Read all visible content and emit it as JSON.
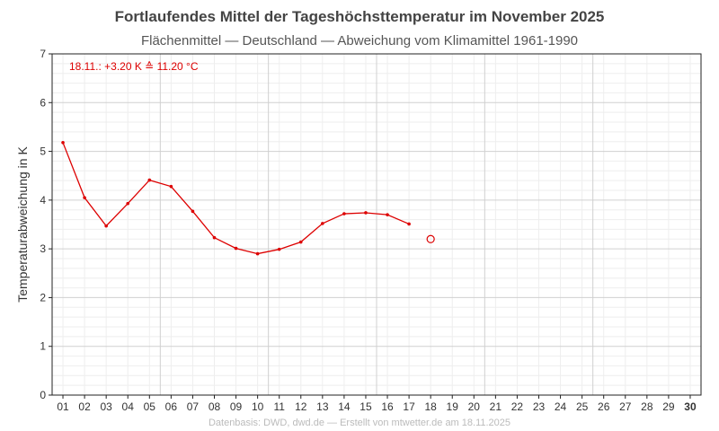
{
  "chart_data": {
    "type": "line",
    "title": "Fortlaufendes Mittel der Tageshöchsttemperatur im November 2025",
    "subtitle": "Flächenmittel — Deutschland — Abweichung vom Klimamittel 1961-1990",
    "ylabel": "Temperaturabweichung in K",
    "xlabel": "",
    "ylim": [
      0,
      7
    ],
    "yticks": [
      "0",
      "1",
      "2",
      "3",
      "4",
      "5",
      "6",
      "7"
    ],
    "xticks": [
      "01",
      "02",
      "03",
      "04",
      "05",
      "06",
      "07",
      "08",
      "09",
      "10",
      "11",
      "12",
      "13",
      "14",
      "15",
      "16",
      "17",
      "18",
      "19",
      "20",
      "21",
      "22",
      "23",
      "24",
      "25",
      "26",
      "27",
      "28",
      "29",
      "30"
    ],
    "x": [
      1,
      2,
      3,
      4,
      5,
      6,
      7,
      8,
      9,
      10,
      11,
      12,
      13,
      14,
      15,
      16,
      17
    ],
    "series": [
      {
        "values": [
          5.18,
          4.05,
          3.47,
          3.93,
          4.41,
          4.28,
          3.77,
          3.23,
          3.01,
          2.9,
          2.99,
          3.14,
          3.52,
          3.72,
          3.74,
          3.7,
          3.51
        ],
        "color": "#dd0000"
      }
    ],
    "current_point": {
      "x": 18,
      "y": 3.2,
      "color": "#dd0000"
    },
    "annotation": "18.11.: +3.20 K ≙ 11.20 °C",
    "grid": true,
    "minor_grid": true,
    "footer": "Datenbasis: DWD, dwd.de — Erstellt von mtwetter.de am 18.11.2025"
  }
}
